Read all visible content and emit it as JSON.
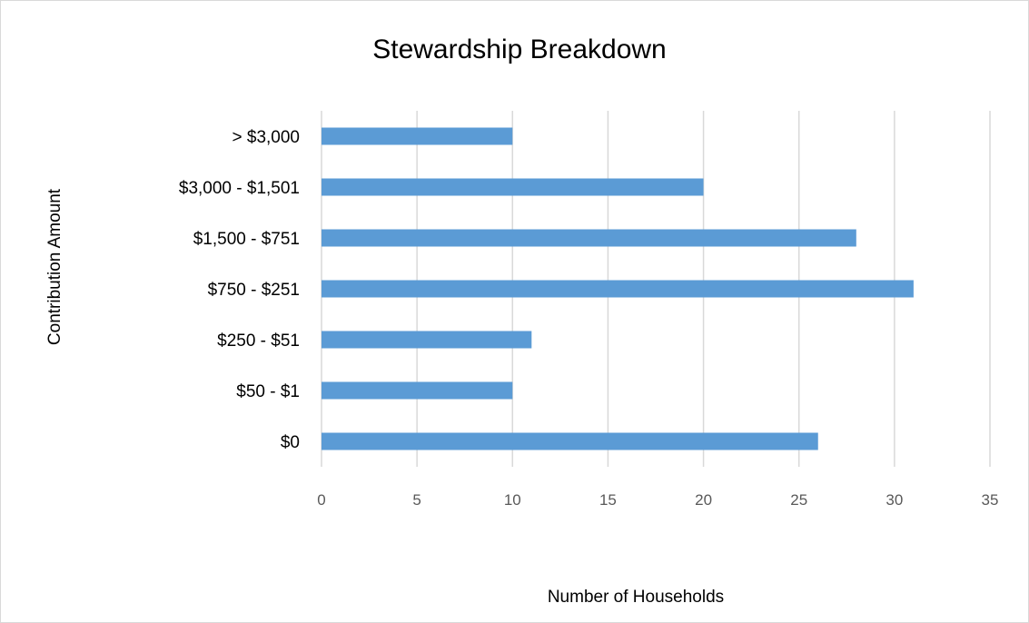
{
  "chart_data": {
    "type": "bar",
    "orientation": "horizontal",
    "title": "Stewardship Breakdown",
    "xlabel": "Number of Households",
    "ylabel": "Contribution Amount",
    "categories": [
      "$0",
      "$50 - $1",
      "$250 - $51",
      "$750 - $251",
      "$1,500 - $751",
      "$3,000 - $1,501",
      "> $3,000"
    ],
    "values": [
      26,
      10,
      11,
      31,
      28,
      20,
      10
    ],
    "xlim": [
      0,
      35
    ],
    "xticks": [
      "0",
      "5",
      "10",
      "15",
      "20",
      "25",
      "30",
      "35"
    ],
    "grid": "vertical",
    "legend": "none",
    "bar_color": "#5b9bd5"
  }
}
